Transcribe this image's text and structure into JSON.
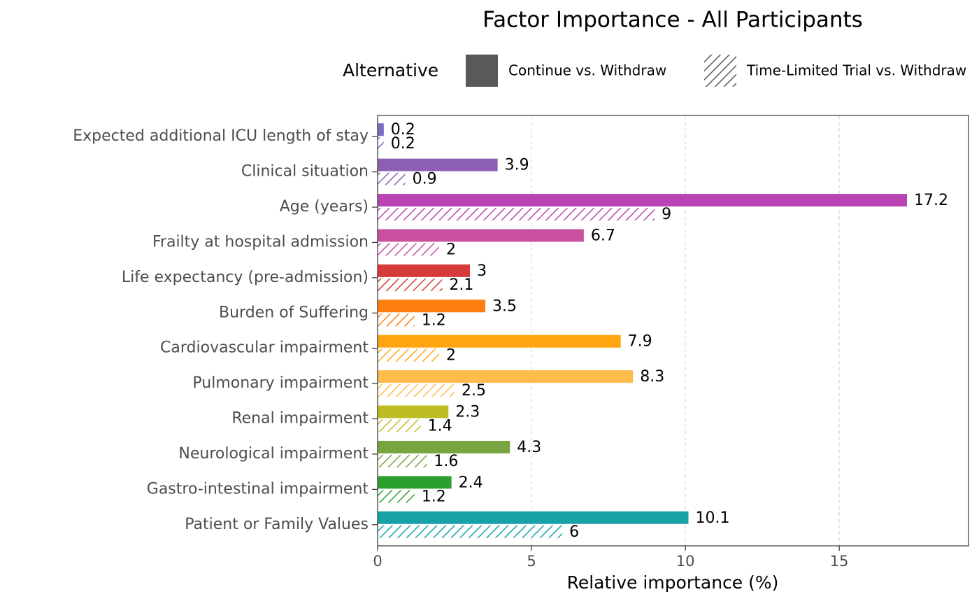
{
  "chart_data": {
    "type": "bar",
    "orientation": "horizontal",
    "title": "Factor Importance - All Participants",
    "x_label": "Relative importance (%)",
    "legend_title": "Alternative",
    "legend_position": "top",
    "categories": [
      "Expected additional ICU length of stay",
      "Clinical situation",
      "Age (years)",
      "Frailty at hospital admission",
      "Life expectancy (pre-admission)",
      "Burden of Suffering",
      "Cardiovascular impairment",
      "Pulmonary impairment",
      "Renal impairment",
      "Neurological impairment",
      "Gastro-intestinal impairment",
      "Patient or Family Values"
    ],
    "category_colors": [
      "#7e6cc0",
      "#8d5fb3",
      "#b944b3",
      "#c9509e",
      "#d63a3a",
      "#ff7f0e",
      "#ffa510",
      "#fdbc4c",
      "#bcbd22",
      "#78a540",
      "#2ca02c",
      "#17a2a8"
    ],
    "series": [
      {
        "name": "Continue vs. Withdraw",
        "color": "#595959",
        "fill": "solid",
        "values": [
          0.2,
          3.9,
          17.2,
          6.7,
          3,
          3.5,
          7.9,
          8.3,
          2.3,
          4.3,
          2.4,
          10.1
        ]
      },
      {
        "name": "Time-Limited Trial vs. Withdraw",
        "color": "#595959",
        "fill": "hatch",
        "values": [
          0.2,
          0.9,
          9,
          2,
          2.1,
          1.2,
          2,
          2.5,
          1.4,
          1.6,
          1.2,
          6
        ]
      }
    ],
    "xlim": [
      0,
      19.2
    ],
    "xticks": [
      0,
      5,
      10,
      15
    ],
    "grid": true
  }
}
